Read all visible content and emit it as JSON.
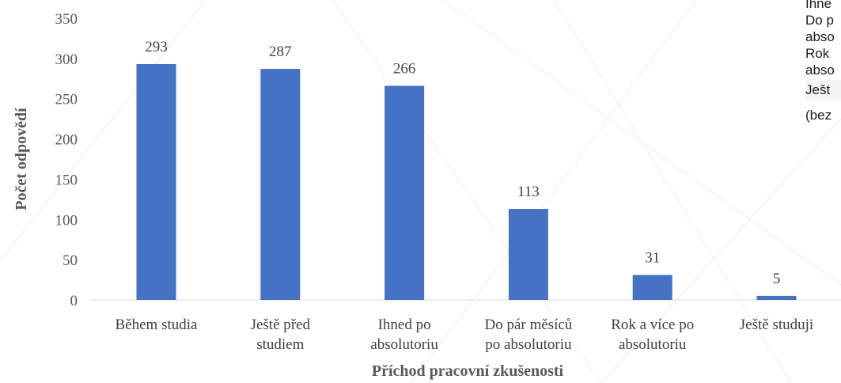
{
  "chart_data": {
    "type": "bar",
    "categories": [
      [
        "Během studia"
      ],
      [
        "Ještě před",
        "studiem"
      ],
      [
        "Ihned po",
        "absolutoriu"
      ],
      [
        "Do pár měsíců",
        "po absolutoriu"
      ],
      [
        "Rok a více po",
        "absolutoriu"
      ],
      [
        "Ještě studuji"
      ]
    ],
    "values": [
      293,
      287,
      266,
      113,
      31,
      5
    ],
    "xlabel": "Příchod pracovní zkušenosti",
    "ylabel": "Počet odpovědí",
    "ylim": [
      0,
      350
    ],
    "yticks": [
      0,
      50,
      100,
      150,
      200,
      250,
      300,
      350
    ],
    "bar_color": "#4472c4",
    "grid": false
  },
  "overlay": {
    "lines": [
      "Ihne",
      "Do p",
      "abso",
      "Rok",
      "abso",
      "Ješt",
      "(bez"
    ]
  }
}
